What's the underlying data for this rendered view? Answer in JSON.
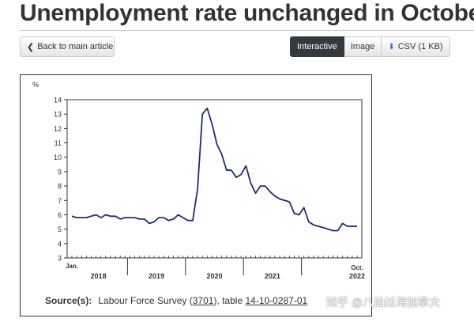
{
  "page": {
    "title": "Unemployment rate unchanged in October",
    "back_label": "Back to main article",
    "view_tabs": [
      "Interactive",
      "Image",
      "CSV (1 KB)"
    ],
    "watermark": "知乎 @八仙过海加拿大"
  },
  "source": {
    "label": "Source(s):",
    "prefix": "Labour Force Survey (",
    "survey_id": "3701",
    "middle": "), table ",
    "table_id": "14-10-0287-01"
  },
  "chart_data": {
    "type": "line",
    "ylabel": "%",
    "ylim": [
      3,
      14
    ],
    "yticks": [
      3,
      4,
      5,
      6,
      7,
      8,
      9,
      10,
      11,
      12,
      13,
      14
    ],
    "start_label": "Jan.",
    "end_label_1": "Oct.",
    "end_label_2": "2022",
    "year_labels": [
      "2018",
      "2019",
      "2020",
      "2021"
    ],
    "line_color": "#1f2d6e",
    "series": [
      {
        "values": [
          5.9,
          5.8,
          5.8,
          5.8,
          5.9,
          6.0,
          5.8,
          6.0,
          5.9,
          5.9,
          5.7,
          5.8,
          5.8,
          5.8,
          5.7,
          5.7,
          5.4,
          5.5,
          5.8,
          5.8,
          5.6,
          5.7,
          6.0,
          5.8,
          5.6,
          5.6,
          7.8,
          13.0,
          13.4,
          12.3,
          10.9,
          10.2,
          9.1,
          9.1,
          8.6,
          8.8,
          9.4,
          8.2,
          7.5,
          8.0,
          8.0,
          7.6,
          7.3,
          7.1,
          7.0,
          6.9,
          6.1,
          6.0,
          6.5,
          5.5,
          5.3,
          5.2,
          5.1,
          5.0,
          4.9,
          4.9,
          5.4,
          5.2,
          5.2,
          5.2
        ]
      }
    ]
  }
}
